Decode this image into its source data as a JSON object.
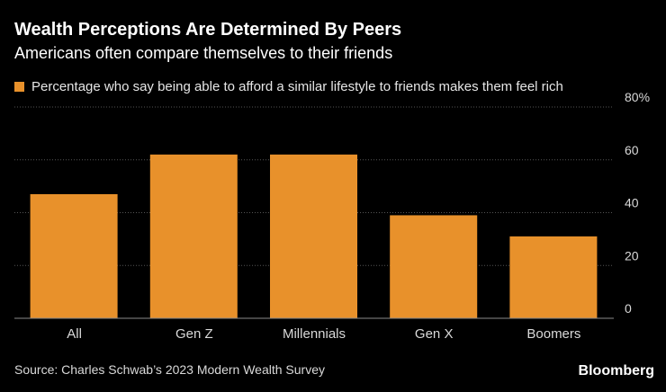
{
  "header": {
    "title": "Wealth Perceptions Are Determined By Peers",
    "subtitle": "Americans often compare themselves to their friends"
  },
  "legend": {
    "label": "Percentage who say being able to afford a similar lifestyle to friends makes them feel rich"
  },
  "footer": {
    "source": "Source: Charles Schwab’s 2023 Modern Wealth Survey",
    "brand": "Bloomberg"
  },
  "colors": {
    "bar": "#e8912b",
    "grid": "#555555",
    "axis_text": "#d9d9d9",
    "background": "#000000"
  },
  "chart_data": {
    "type": "bar",
    "categories": [
      "All",
      "Gen Z",
      "Millennials",
      "Gen X",
      "Boomers"
    ],
    "values": [
      47,
      62,
      62,
      39,
      31
    ],
    "ylim": [
      0,
      80
    ],
    "yticks": [
      0,
      20,
      40,
      60,
      80
    ],
    "ytick_labels": [
      "0",
      "20",
      "40",
      "60",
      "80"
    ],
    "y_unit": "%",
    "ylabel": "",
    "xlabel": "",
    "grid": true,
    "yaxis_position": "right"
  }
}
